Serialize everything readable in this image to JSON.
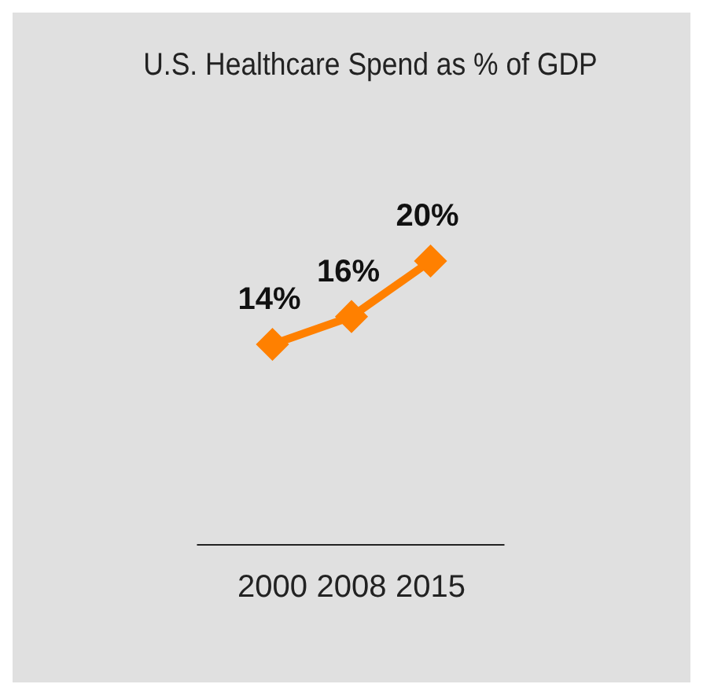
{
  "chart_data": {
    "type": "line",
    "title": "U.S. Healthcare Spend as % of GDP",
    "categories": [
      "2000",
      "2008",
      "2015"
    ],
    "values": [
      14,
      16,
      20
    ],
    "value_labels": [
      "14%",
      "16%",
      "20%"
    ],
    "color": "#ff8000",
    "marker": "diamond",
    "line_style": "solid",
    "tick_labels": "x",
    "grid": false,
    "legend": false
  }
}
